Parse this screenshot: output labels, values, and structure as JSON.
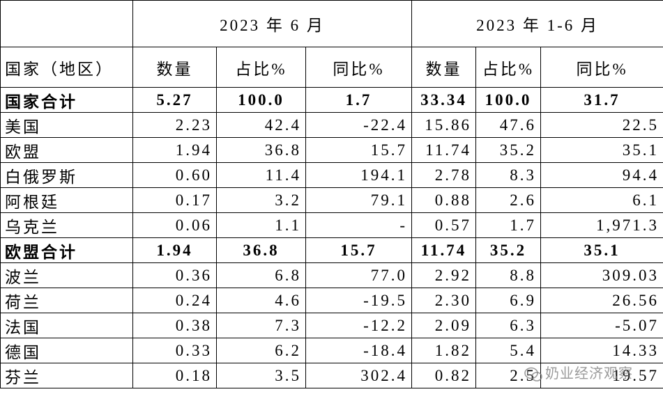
{
  "table": {
    "group_headers": [
      "2023 年 6 月",
      "2023 年 1-6 月"
    ],
    "headers": [
      "国家（地区）",
      "数量",
      "占比%",
      "同比%",
      "数量",
      "占比%",
      "同比%"
    ],
    "rows": [
      [
        "国家合计",
        "5.27",
        "100.0",
        "1.7",
        "33.34",
        "100.0",
        "31.7"
      ],
      [
        "美国",
        "2.23",
        "42.4",
        "-22.4",
        "15.86",
        "47.6",
        "22.5"
      ],
      [
        "欧盟",
        "1.94",
        "36.8",
        "15.7",
        "11.74",
        "35.2",
        "35.1"
      ],
      [
        "白俄罗斯",
        "0.60",
        "11.4",
        "194.1",
        "2.78",
        "8.3",
        "94.4"
      ],
      [
        "阿根廷",
        "0.17",
        "3.2",
        "79.1",
        "0.88",
        "2.6",
        "6.1"
      ],
      [
        "乌克兰",
        "0.06",
        "1.1",
        "-",
        "0.57",
        "1.7",
        "1,971.3"
      ],
      [
        "欧盟合计",
        "1.94",
        "36.8",
        "15.7",
        "11.74",
        "35.2",
        "35.1"
      ],
      [
        "波兰",
        "0.36",
        "6.8",
        "77.0",
        "2.92",
        "8.8",
        "309.03"
      ],
      [
        "荷兰",
        "0.24",
        "4.6",
        "-19.5",
        "2.30",
        "6.9",
        "26.56"
      ],
      [
        "法国",
        "0.38",
        "7.3",
        "-12.2",
        "2.09",
        "6.3",
        "-5.07"
      ],
      [
        "德国",
        "0.33",
        "6.2",
        "-18.4",
        "1.82",
        "5.4",
        "14.33"
      ],
      [
        "芬兰",
        "0.18",
        "3.5",
        "302.4",
        "0.82",
        "2.5",
        "19.57"
      ]
    ]
  },
  "watermark": "奶业经济观察"
}
